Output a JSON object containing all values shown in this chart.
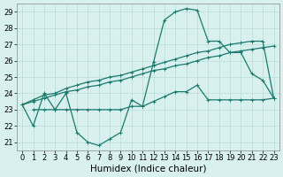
{
  "xlabel": "Humidex (Indice chaleur)",
  "x_ticks": [
    0,
    1,
    2,
    3,
    4,
    5,
    6,
    7,
    8,
    9,
    10,
    11,
    12,
    13,
    14,
    15,
    16,
    17,
    18,
    19,
    20,
    21,
    22,
    23
  ],
  "y_ticks": [
    21,
    22,
    23,
    24,
    25,
    26,
    27,
    28,
    29
  ],
  "xlim": [
    -0.5,
    23.5
  ],
  "ylim": [
    20.5,
    29.5
  ],
  "line1_x": [
    0,
    1,
    2,
    3,
    4,
    5,
    6,
    7,
    8,
    9,
    10,
    11,
    12,
    13,
    14,
    15,
    16,
    17,
    18,
    19,
    20,
    21,
    22,
    23
  ],
  "line1_y": [
    23.3,
    22.0,
    24.0,
    23.0,
    24.0,
    21.6,
    21.0,
    20.8,
    21.2,
    21.6,
    23.6,
    23.2,
    25.9,
    28.5,
    29.0,
    29.2,
    29.1,
    27.2,
    27.2,
    26.5,
    26.5,
    25.2,
    24.8,
    23.7
  ],
  "line2_x": [
    1,
    2,
    3,
    4,
    5,
    6,
    7,
    8,
    9,
    10,
    11,
    12,
    13,
    14,
    15,
    16,
    17,
    18,
    19,
    20,
    21,
    22,
    23
  ],
  "line2_y": [
    23.0,
    23.0,
    23.0,
    23.0,
    23.0,
    23.0,
    23.0,
    23.0,
    23.0,
    23.2,
    23.2,
    23.5,
    23.8,
    24.1,
    24.1,
    24.5,
    23.6,
    23.6,
    23.6,
    23.6,
    23.6,
    23.6,
    23.7
  ],
  "line3_x": [
    0,
    1,
    2,
    3,
    4,
    5,
    6,
    7,
    8,
    9,
    10,
    11,
    12,
    13,
    14,
    15,
    16,
    17,
    18,
    19,
    20,
    21,
    22,
    23
  ],
  "line3_y": [
    23.3,
    23.5,
    23.7,
    23.9,
    24.1,
    24.2,
    24.4,
    24.5,
    24.7,
    24.8,
    25.0,
    25.2,
    25.4,
    25.5,
    25.7,
    25.8,
    26.0,
    26.2,
    26.3,
    26.5,
    26.6,
    26.7,
    26.8,
    26.9
  ],
  "line4_x": [
    0,
    1,
    2,
    3,
    4,
    5,
    6,
    7,
    8,
    9,
    10,
    11,
    12,
    13,
    14,
    15,
    16,
    17,
    18,
    19,
    20,
    21,
    22,
    23
  ],
  "line4_y": [
    23.3,
    23.6,
    23.9,
    24.0,
    24.3,
    24.5,
    24.7,
    24.8,
    25.0,
    25.1,
    25.3,
    25.5,
    25.7,
    25.9,
    26.1,
    26.3,
    26.5,
    26.6,
    26.8,
    27.0,
    27.1,
    27.2,
    27.2,
    23.7
  ],
  "line_color": "#1a7a6e",
  "bg_color": "#d8f0ee",
  "grid_color": "#b8dcd8",
  "tick_fontsize": 6,
  "label_fontsize": 7.5
}
